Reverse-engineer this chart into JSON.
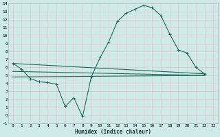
{
  "xlabel": "Humidex (Indice chaleur)",
  "bg_color": "#ceeae8",
  "grid_color": "#e8c8c8",
  "line_color": "#1a6b5a",
  "xlim": [
    -0.5,
    23.5
  ],
  "ylim": [
    -1,
    14
  ],
  "xtick_labels": [
    "0",
    "1",
    "2",
    "3",
    "4",
    "5",
    "6",
    "7",
    "8",
    "9",
    "10",
    "11",
    "12",
    "13",
    "14",
    "15",
    "16",
    "17",
    "18",
    "19",
    "20",
    "21",
    "22",
    "23"
  ],
  "xtick_vals": [
    0,
    1,
    2,
    3,
    4,
    5,
    6,
    7,
    8,
    9,
    10,
    11,
    12,
    13,
    14,
    15,
    16,
    17,
    18,
    19,
    20,
    21,
    22,
    23
  ],
  "ytick_vals": [
    -1,
    0,
    1,
    2,
    3,
    4,
    5,
    6,
    7,
    8,
    9,
    10,
    11,
    12,
    13,
    14
  ],
  "curve_x": [
    0,
    1,
    2,
    3,
    4,
    5,
    6,
    7,
    8,
    9,
    10,
    11,
    12,
    13,
    14,
    15,
    16,
    17,
    18,
    19,
    20,
    21,
    22
  ],
  "curve_y": [
    6.5,
    5.8,
    4.6,
    4.2,
    4.1,
    3.9,
    1.1,
    2.2,
    -0.2,
    4.8,
    7.2,
    9.2,
    11.8,
    12.8,
    13.3,
    13.8,
    13.5,
    12.5,
    10.2,
    8.2,
    7.8,
    6.0,
    5.2
  ],
  "line1_x": [
    0,
    22
  ],
  "line1_y": [
    6.5,
    5.2
  ],
  "line2_x": [
    0,
    22
  ],
  "line2_y": [
    5.5,
    5.0
  ],
  "line3_x": [
    0,
    22
  ],
  "line3_y": [
    4.8,
    5.0
  ]
}
